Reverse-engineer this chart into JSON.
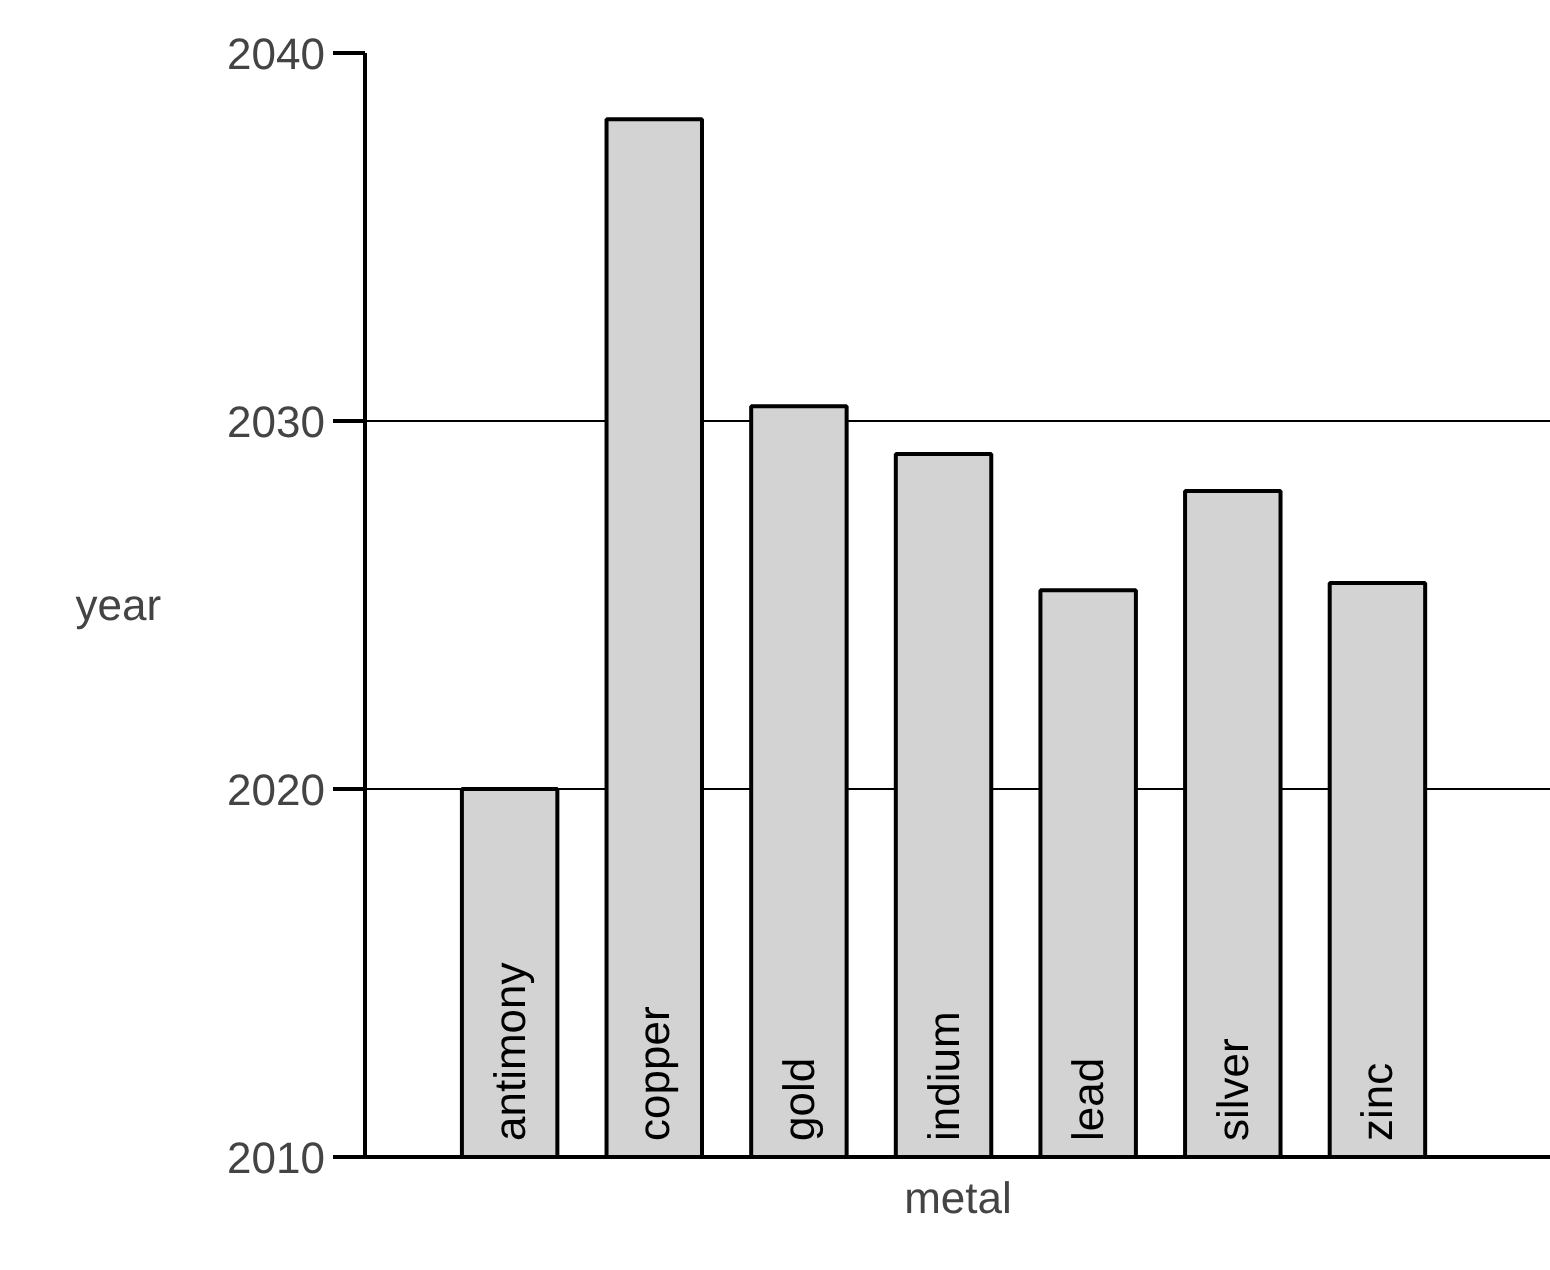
{
  "chart_data": {
    "type": "bar",
    "xlabel": "metal",
    "ylabel": "year",
    "categories": [
      "antimony",
      "copper",
      "gold",
      "indium",
      "lead",
      "silver",
      "zinc"
    ],
    "values": [
      2020,
      2038.2,
      2030.4,
      2029.1,
      2025.4,
      2028.1,
      2025.6
    ],
    "color": "#d3d3d3",
    "ylim": [
      2010,
      2040
    ],
    "yticks": [
      2010,
      2020,
      2030,
      2040
    ],
    "grid": "y",
    "tick_labels": "y"
  }
}
